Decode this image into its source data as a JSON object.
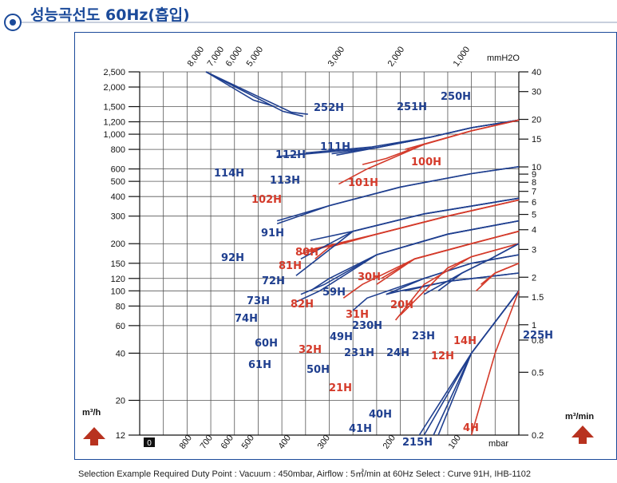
{
  "page": {
    "title": "성능곡선도 60Hz(흡입)",
    "example_note": "Selection Example Required Duty Point : Vacuum : 450mbar, Airflow : 5㎥/min at 60Hz Select : Curve 91H, IHB-1102"
  },
  "colors": {
    "blue": "#1f3f8f",
    "red": "#d43a2a",
    "grid": "#555555",
    "frame": "#1b4a9a",
    "arrow": "#b8321f"
  },
  "icons": {
    "title_bullet": "circle-dot-icon",
    "left_arrow": "up-arrow-icon",
    "right_arrow": "up-arrow-icon"
  },
  "chart_data": {
    "type": "line",
    "left_axis": {
      "label": "m³/h",
      "scale": "log",
      "ticks": [
        12,
        20,
        40,
        60,
        80,
        100,
        120,
        150,
        200,
        300,
        400,
        500,
        600,
        800,
        "1,000",
        "1,200",
        "1,500",
        "2,000",
        "2,500"
      ]
    },
    "right_axis": {
      "label": "m³/min",
      "scale": "log",
      "ticks": [
        "0.2",
        "0.5",
        "0.8",
        "1",
        "1.5",
        "2",
        "3",
        "4",
        "5",
        "6",
        "7",
        "8",
        "9",
        "10",
        "15",
        "20",
        "30",
        "40"
      ]
    },
    "bottom_axis": {
      "label": "mbar",
      "zero_label": "0",
      "ticks": [
        "800",
        "700",
        "600",
        "500",
        "400",
        "300",
        "200",
        "100"
      ]
    },
    "top_axis": {
      "label": "mmH2O",
      "ticks": [
        "8,000",
        "7,000",
        "6,000",
        "5,000",
        "3,000",
        "2,000",
        "1,000"
      ]
    },
    "series": [
      {
        "name": "250H",
        "color": "blue",
        "x": [
          660,
          560,
          515
        ],
        "y": [
          2500,
          1650,
          1500
        ]
      },
      {
        "name": "251H",
        "color": "blue",
        "x": [
          660,
          498,
          455
        ],
        "y": [
          2500,
          1400,
          1300
        ]
      },
      {
        "name": "252H",
        "color": "blue",
        "x": [
          660,
          480,
          445
        ],
        "y": [
          2500,
          1380,
          1340
        ]
      },
      {
        "name": "111H",
        "color": "blue",
        "x": [
          0,
          100,
          185,
          310,
          450
        ],
        "y": [
          1230,
          1100,
          960,
          830,
          760
        ]
      },
      {
        "name": "112H",
        "color": "blue",
        "x": [
          0,
          100,
          185,
          300,
          395
        ],
        "y": [
          1230,
          1100,
          960,
          820,
          750
        ]
      },
      {
        "name": "113H",
        "color": "blue",
        "x": [
          0,
          100,
          185,
          300,
          385
        ],
        "y": [
          1230,
          1100,
          960,
          820,
          735
        ]
      },
      {
        "name": "114H",
        "color": "blue",
        "x": [
          0,
          100,
          185,
          300,
          510
        ],
        "y": [
          1230,
          1100,
          960,
          820,
          720
        ]
      },
      {
        "name": "100H",
        "color": "red",
        "x": [
          0,
          100,
          180,
          240
        ],
        "y": [
          1230,
          1050,
          900,
          800
        ]
      },
      {
        "name": "101H",
        "color": "red",
        "x": [
          0,
          100,
          200,
          280,
          330
        ],
        "y": [
          1230,
          1050,
          860,
          700,
          640
        ]
      },
      {
        "name": "102H",
        "color": "red",
        "x": [
          0,
          100,
          200,
          320,
          380
        ],
        "y": [
          1230,
          1050,
          860,
          600,
          480
        ]
      },
      {
        "name": "91H",
        "color": "blue",
        "x": [
          0,
          100,
          250,
          400,
          510
        ],
        "y": [
          620,
          560,
          460,
          350,
          280
        ]
      },
      {
        "name": "92H",
        "color": "blue",
        "x": [
          0,
          100,
          250,
          400,
          510
        ],
        "y": [
          620,
          560,
          460,
          350,
          268
        ]
      },
      {
        "name": "80H",
        "color": "red",
        "x": [
          0,
          150,
          300,
          400,
          450
        ],
        "y": [
          380,
          300,
          230,
          195,
          180
        ]
      },
      {
        "name": "81H",
        "color": "red",
        "x": [
          0,
          150,
          300,
          410,
          460
        ],
        "y": [
          380,
          300,
          230,
          190,
          172
        ]
      },
      {
        "name": "82H",
        "color": "red",
        "x": [
          0,
          150,
          300,
          400,
          430
        ],
        "y": [
          380,
          300,
          230,
          190,
          160
        ]
      },
      {
        "name": "72H",
        "color": "blue",
        "x": [
          0,
          200,
          350,
          440
        ],
        "y": [
          390,
          310,
          240,
          210
        ]
      },
      {
        "name": "73H",
        "color": "blue",
        "x": [
          0,
          200,
          350,
          460
        ],
        "y": [
          390,
          310,
          240,
          160
        ]
      },
      {
        "name": "74H",
        "color": "blue",
        "x": [
          0,
          200,
          350,
          470
        ],
        "y": [
          390,
          310,
          240,
          125
        ]
      },
      {
        "name": "59H",
        "color": "blue",
        "x": [
          0,
          150,
          300,
          400,
          440
        ],
        "y": [
          280,
          230,
          170,
          120,
          100
        ]
      },
      {
        "name": "60H",
        "color": "blue",
        "x": [
          0,
          150,
          300,
          410,
          460
        ],
        "y": [
          280,
          230,
          170,
          110,
          95
        ]
      },
      {
        "name": "61H",
        "color": "blue",
        "x": [
          0,
          150,
          300,
          420,
          470
        ],
        "y": [
          280,
          230,
          170,
          100,
          85
        ]
      },
      {
        "name": "30H",
        "color": "red",
        "x": [
          0,
          100,
          220,
          290
        ],
        "y": [
          240,
          200,
          160,
          120
        ]
      },
      {
        "name": "31H",
        "color": "red",
        "x": [
          0,
          100,
          220,
          300
        ],
        "y": [
          240,
          200,
          160,
          110
        ]
      },
      {
        "name": "32H",
        "color": "red",
        "x": [
          0,
          100,
          220,
          330,
          370
        ],
        "y": [
          240,
          200,
          160,
          110,
          90
        ]
      },
      {
        "name": "49H",
        "color": "blue",
        "x": [
          0,
          100,
          200,
          280
        ],
        "y": [
          170,
          150,
          120,
          95
        ]
      },
      {
        "name": "50H",
        "color": "blue",
        "x": [
          0,
          100,
          200,
          320,
          350
        ],
        "y": [
          170,
          150,
          120,
          90,
          75
        ]
      },
      {
        "name": "230H",
        "color": "blue",
        "x": [
          0,
          150,
          240
        ],
        "y": [
          130,
          115,
          100
        ]
      },
      {
        "name": "231H",
        "color": "blue",
        "x": [
          0,
          150,
          250,
          280
        ],
        "y": [
          130,
          115,
          100,
          95
        ]
      },
      {
        "name": "20H",
        "color": "red",
        "x": [
          0,
          100,
          150,
          250
        ],
        "y": [
          200,
          165,
          140,
          70
        ]
      },
      {
        "name": "21H",
        "color": "red",
        "x": [
          0,
          100,
          200,
          260
        ],
        "y": [
          200,
          165,
          110,
          65
        ]
      },
      {
        "name": "23H",
        "color": "blue",
        "x": [
          0,
          60,
          120,
          170
        ],
        "y": [
          200,
          160,
          130,
          100
        ]
      },
      {
        "name": "24H",
        "color": "blue",
        "x": [
          0,
          60,
          120,
          200
        ],
        "y": [
          200,
          160,
          130,
          95
        ]
      },
      {
        "name": "14H",
        "color": "red",
        "x": [
          0,
          50,
          80
        ],
        "y": [
          150,
          130,
          110
        ]
      },
      {
        "name": "12H",
        "color": "red",
        "x": [
          0,
          50,
          90
        ],
        "y": [
          150,
          130,
          100
        ]
      },
      {
        "name": "225H",
        "color": "blue",
        "x": [
          0,
          100,
          200
        ],
        "y": [
          100,
          40,
          12
        ]
      },
      {
        "name": "215H",
        "color": "blue",
        "x": [
          0,
          100,
          170
        ],
        "y": [
          100,
          40,
          12
        ]
      },
      {
        "name": "40H",
        "color": "blue",
        "x": [
          0,
          100,
          180
        ],
        "y": [
          100,
          40,
          12
        ]
      },
      {
        "name": "41H",
        "color": "blue",
        "x": [
          0,
          100,
          210
        ],
        "y": [
          100,
          40,
          12
        ]
      },
      {
        "name": "4H",
        "color": "red",
        "x": [
          0,
          50,
          100
        ],
        "y": [
          100,
          40,
          12
        ]
      }
    ]
  }
}
